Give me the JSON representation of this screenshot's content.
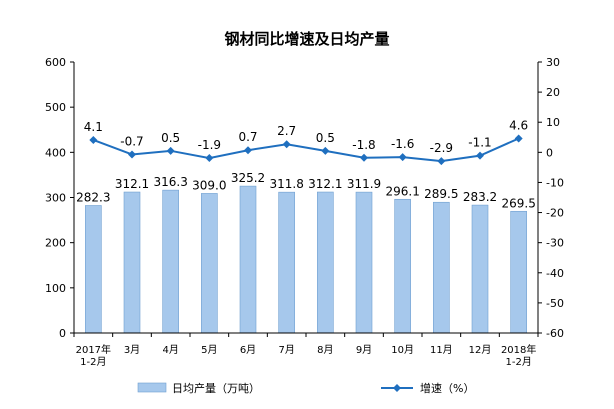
{
  "chart_data": {
    "type": "bar",
    "title": "钢材同比增速及日均产量",
    "categories": [
      [
        "2017年",
        "1-2月"
      ],
      [
        "3月"
      ],
      [
        "4月"
      ],
      [
        "5月"
      ],
      [
        "6月"
      ],
      [
        "7月"
      ],
      [
        "8月"
      ],
      [
        "9月"
      ],
      [
        "10月"
      ],
      [
        "11月"
      ],
      [
        "12月"
      ],
      [
        "2018年",
        "1-2月"
      ]
    ],
    "series": [
      {
        "name": "日均产量（万吨）",
        "type": "bar",
        "axis": "left",
        "color": "#a6c8ec",
        "values": [
          282.3,
          312.1,
          316.3,
          309.0,
          325.2,
          311.8,
          312.1,
          311.9,
          296.1,
          289.5,
          283.2,
          269.5
        ],
        "labels": [
          "282.3",
          "312.1",
          "316.3",
          "309.0",
          "325.2",
          "311.8",
          "312.1",
          "311.9",
          "296.1",
          "289.5",
          "283.2",
          "269.5"
        ]
      },
      {
        "name": "增速（%）",
        "type": "line",
        "axis": "right",
        "color": "#1f6fbf",
        "values": [
          4.1,
          -0.7,
          0.5,
          -1.9,
          0.7,
          2.7,
          0.5,
          -1.8,
          -1.6,
          -2.9,
          -1.1,
          4.6
        ],
        "labels": [
          "4.1",
          "-0.7",
          "0.5",
          "-1.9",
          "0.7",
          "2.7",
          "0.5",
          "-1.8",
          "-1.6",
          "-2.9",
          "-1.1",
          "4.6"
        ]
      }
    ],
    "left_axis": {
      "min": 0,
      "max": 600,
      "step": 100,
      "ticks": [
        "0",
        "100",
        "200",
        "300",
        "400",
        "500",
        "600"
      ]
    },
    "right_axis": {
      "min": -60,
      "max": 30,
      "step": 10,
      "ticks": [
        "-60",
        "-50",
        "-40",
        "-30",
        "-20",
        "-10",
        "0",
        "10",
        "20",
        "30"
      ]
    },
    "grid": false,
    "legend_position": "bottom"
  }
}
